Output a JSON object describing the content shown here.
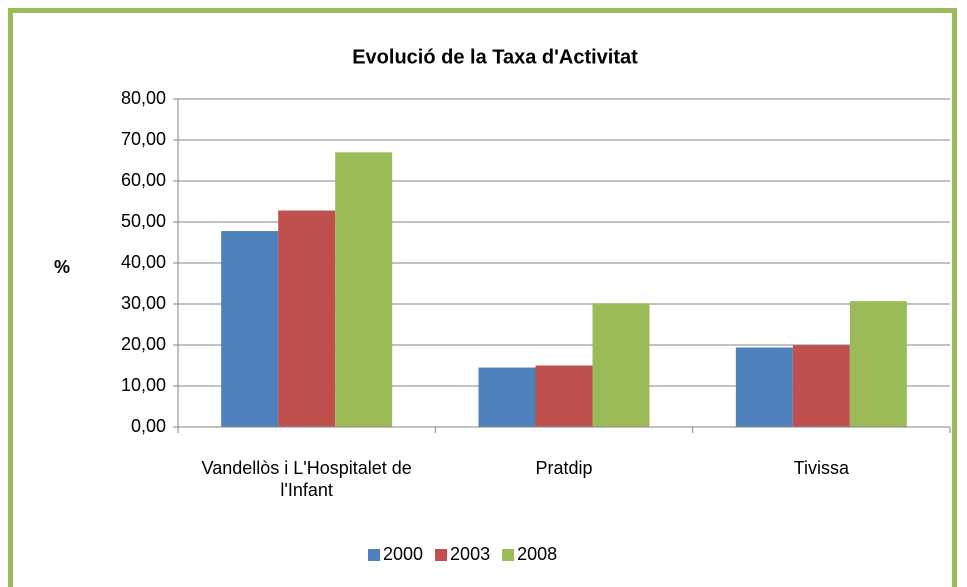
{
  "chart_data": {
    "type": "bar",
    "title": "Evolució de la Taxa d'Activitat",
    "y_label": "%",
    "categories": [
      "Vandellòs i L'Hospitalet de l'Infant",
      "Pratdip",
      "Tivissa"
    ],
    "series": [
      {
        "name": "2000",
        "color": "#4f81bd",
        "values": [
          47.8,
          14.5,
          19.4
        ]
      },
      {
        "name": "2003",
        "color": "#c0504d",
        "values": [
          52.8,
          15.0,
          19.9
        ]
      },
      {
        "name": "2008",
        "color": "#9bbb59",
        "values": [
          67.0,
          30.2,
          30.7
        ]
      }
    ],
    "ylim": [
      0,
      80
    ],
    "yticks": [
      {
        "value": 0,
        "label": "0,00"
      },
      {
        "value": 10,
        "label": "10,00"
      },
      {
        "value": 20,
        "label": "20,00"
      },
      {
        "value": 30,
        "label": "30,00"
      },
      {
        "value": 40,
        "label": "40,00"
      },
      {
        "value": 50,
        "label": "50,00"
      },
      {
        "value": 60,
        "label": "60,00"
      },
      {
        "value": 70,
        "label": "70,00"
      },
      {
        "value": 80,
        "label": "80,00"
      }
    ],
    "grid": true,
    "legend": "bottom"
  }
}
